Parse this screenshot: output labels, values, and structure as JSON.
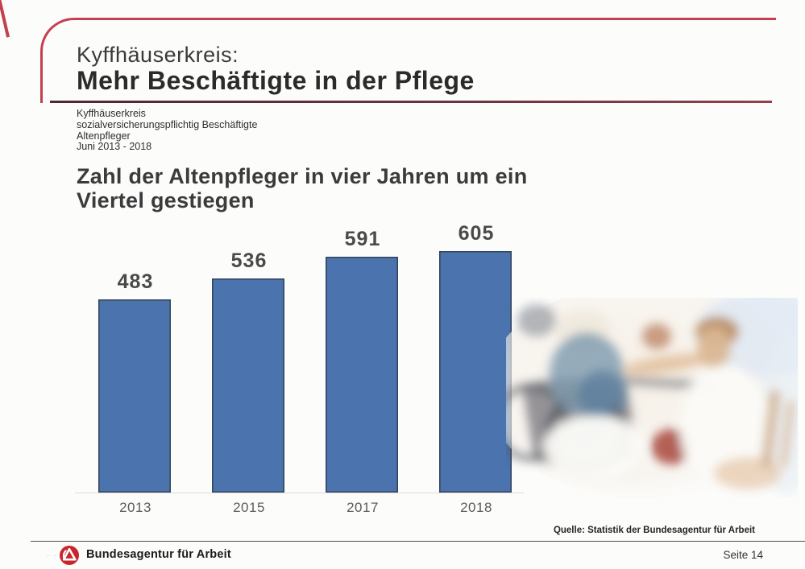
{
  "slide": {
    "pretitle": "Kyffhäuserkreis:",
    "title": "Mehr Beschäftigte in der Pflege",
    "meta_lines": [
      "Kyffhäuserkreis",
      "sozialversicherungspflichtig Beschäftigte",
      "Altenpfleger",
      "Juni 2013 - 2018"
    ],
    "heading_lines": [
      "Zahl der Altenpfleger in vier Jahren um ein",
      "Viertel gestiegen"
    ]
  },
  "chart_data": {
    "type": "bar",
    "categories": [
      "2013",
      "2015",
      "2017",
      "2018"
    ],
    "values": [
      483,
      536,
      591,
      605
    ],
    "title": "Zahl der Altenpfleger in vier Jahren um ein Viertel gestiegen",
    "xlabel": "",
    "ylabel": "",
    "ylim": [
      0,
      650
    ],
    "grid": false,
    "legend": false,
    "data_labels": true,
    "bar_color": "#4b74ae",
    "bar_border_color": "#2b4766",
    "value_label_color": "#4a4a4a",
    "axis_label_color": "#5a5a5a"
  },
  "photo": {
    "description": "Gepflegte Senioren mit Pflegerin (Altenpflege-Foto)"
  },
  "source_line": "Quelle: Statistik der Bundesagentur für Arbeit",
  "footer": {
    "brand": "Bundesagentur für Arbeit",
    "page_label": "Seite 14"
  },
  "colors": {
    "frame_red": "#c4404f",
    "title_rule": "#6e333e",
    "bar_blue": "#4b74ae"
  }
}
